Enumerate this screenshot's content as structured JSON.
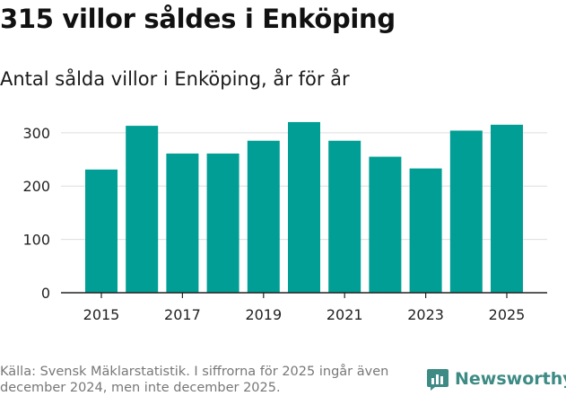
{
  "title": "315 villor såldes i Enköping",
  "subtitle": "Antal sålda villor i Enköping, år för år",
  "source": "Källa: Svensk Mäklarstatistik. I siffrorna för 2025 ingår även december 2024, men inte december 2025.",
  "logo": {
    "text": "Newsworthy",
    "icon": "bar-chart-logo-icon"
  },
  "colors": {
    "bar": "#009e94",
    "grid": "#dddddd",
    "axis": "#222222",
    "tick_label": "#222222",
    "logo": "#3d8b84"
  },
  "chart_data": {
    "type": "bar",
    "title": "315 villor såldes i Enköping",
    "subtitle": "Antal sålda villor i Enköping, år för år",
    "categories": [
      "2015",
      "2016",
      "2017",
      "2018",
      "2019",
      "2020",
      "2021",
      "2022",
      "2023",
      "2024",
      "2025"
    ],
    "values": [
      231,
      313,
      261,
      261,
      285,
      320,
      285,
      255,
      233,
      304,
      315
    ],
    "x_tick_labels": [
      "2015",
      "2017",
      "2019",
      "2021",
      "2023",
      "2025"
    ],
    "y_ticks": [
      0,
      100,
      200,
      300
    ],
    "ylim": [
      0,
      330
    ],
    "xlabel": "",
    "ylabel": "",
    "grid": true,
    "legend": "none"
  }
}
